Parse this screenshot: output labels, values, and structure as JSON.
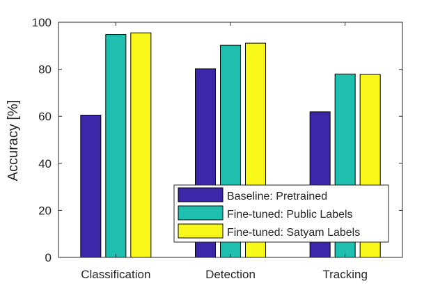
{
  "chart_data": {
    "type": "bar",
    "title": "",
    "xlabel": "",
    "ylabel": "Accuracy [%]",
    "ylim": [
      0,
      100
    ],
    "yticks": [
      0,
      20,
      40,
      60,
      80,
      100
    ],
    "grid": false,
    "categories": [
      "Classification",
      "Detection",
      "Tracking"
    ],
    "series": [
      {
        "name": "Baseline: Pretrained",
        "color": "#3b27a8",
        "values": [
          60.5,
          80.2,
          61.9
        ]
      },
      {
        "name": "Fine-tuned: Public Labels",
        "color": "#1fbfb0",
        "values": [
          94.8,
          90.2,
          78.0
        ]
      },
      {
        "name": "Fine-tuned: Satyam Labels",
        "color": "#f7f71a",
        "values": [
          95.5,
          91.1,
          77.8
        ]
      }
    ],
    "legend": {
      "position": "bottom-right"
    }
  }
}
